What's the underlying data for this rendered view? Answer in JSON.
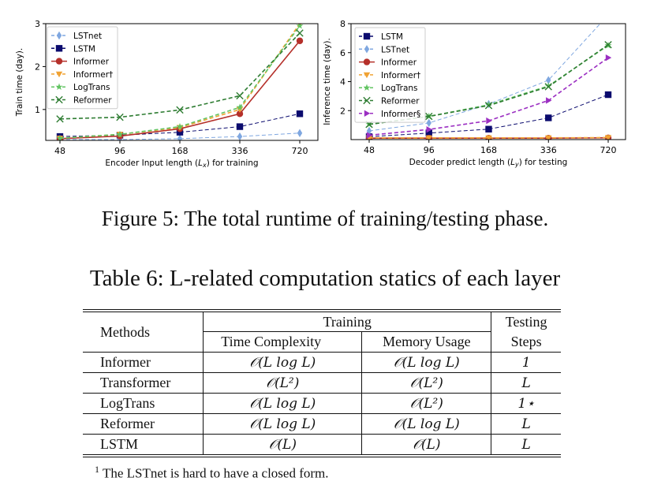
{
  "chart_data": [
    {
      "type": "line",
      "xlabel": "Encoder Input length (L_x) for training",
      "ylabel": "Train time (day).",
      "categories": [
        "48",
        "96",
        "168",
        "336",
        "720"
      ],
      "ylim": [
        0.28,
        3
      ],
      "yticks": [
        1,
        2,
        3
      ],
      "legend": "top-left",
      "series": [
        {
          "name": "LSTnet",
          "marker": "diamond",
          "style": "dashed",
          "color": "#7fa7e0",
          "values": [
            0.3,
            0.3,
            0.32,
            0.37,
            0.45
          ]
        },
        {
          "name": "LSTM",
          "marker": "square",
          "style": "dashed",
          "color": "#0b0b6e",
          "values": [
            0.37,
            0.4,
            0.47,
            0.6,
            0.9
          ]
        },
        {
          "name": "Informer",
          "marker": "circle",
          "style": "solid",
          "color": "#b5302a",
          "values": [
            0.32,
            0.38,
            0.55,
            0.9,
            2.6
          ]
        },
        {
          "name": "Informer†",
          "marker": "triangle-down",
          "style": "dashed",
          "color": "#f0a233",
          "values": [
            0.33,
            0.42,
            0.58,
            1.0,
            3.0
          ]
        },
        {
          "name": "LogTrans",
          "marker": "star",
          "style": "dashed",
          "color": "#62c462",
          "values": [
            0.33,
            0.42,
            0.6,
            1.05,
            2.95
          ]
        },
        {
          "name": "Reformer",
          "marker": "x",
          "style": "dashed",
          "color": "#2f7d33",
          "values": [
            0.78,
            0.82,
            0.99,
            1.32,
            2.78
          ]
        }
      ]
    },
    {
      "type": "line",
      "xlabel": "Decoder predict length (L_y) for testing",
      "ylabel": "Inference time (day).",
      "categories": [
        "48",
        "96",
        "168",
        "336",
        "720"
      ],
      "ylim": [
        0,
        8
      ],
      "yticks": [
        2,
        4,
        6,
        8
      ],
      "legend": "top-left",
      "series": [
        {
          "name": "LSTM",
          "marker": "square",
          "style": "dashed",
          "color": "#0b0b6e",
          "values": [
            0.2,
            0.45,
            0.72,
            1.5,
            3.1
          ]
        },
        {
          "name": "LSTnet",
          "marker": "diamond",
          "style": "dashed",
          "color": "#7fa7e0",
          "values": [
            0.6,
            1.15,
            2.45,
            4.1,
            8.6
          ]
        },
        {
          "name": "Informer",
          "marker": "circle",
          "style": "solid",
          "color": "#b5302a",
          "values": [
            0.1,
            0.1,
            0.1,
            0.1,
            0.12
          ]
        },
        {
          "name": "Informer†",
          "marker": "triangle-down",
          "style": "dashed",
          "color": "#f0a233",
          "values": [
            0.12,
            0.12,
            0.12,
            0.12,
            0.14
          ]
        },
        {
          "name": "LogTrans",
          "marker": "star",
          "style": "dashed",
          "color": "#62c462",
          "values": [
            1.05,
            1.6,
            2.4,
            3.7,
            6.5
          ]
        },
        {
          "name": "Reformer",
          "marker": "x",
          "style": "dashed",
          "color": "#2f7d33",
          "values": [
            1.05,
            1.6,
            2.35,
            3.65,
            6.55
          ]
        },
        {
          "name": "Informer§",
          "marker": "triangle-right",
          "style": "dashed",
          "color": "#9b2fc2",
          "values": [
            0.3,
            0.7,
            1.3,
            2.7,
            5.65
          ]
        }
      ]
    }
  ],
  "figure_caption": "Figure 5: The total runtime of training/testing phase.",
  "table_caption": "Table 6: L-related computation statics of each layer",
  "table": {
    "headers": {
      "methods": "Methods",
      "training": "Training",
      "testing": "Testing",
      "time": "Time Complexity",
      "memory": "Memory Usage",
      "steps": "Steps"
    },
    "rows": [
      [
        "Informer",
        "𝒪(L log L)",
        "𝒪(L log L)",
        "1"
      ],
      [
        "Transformer",
        "𝒪(L²)",
        "𝒪(L²)",
        "L"
      ],
      [
        "LogTrans",
        "𝒪(L log L)",
        "𝒪(L²)",
        "1⋆"
      ],
      [
        "Reformer",
        "𝒪(L log L)",
        "𝒪(L log L)",
        "L"
      ],
      [
        "LSTM",
        "𝒪(L)",
        "𝒪(L)",
        "L"
      ]
    ],
    "footnote_mark": "1",
    "footnote": "The LSTnet is hard to have a closed form."
  }
}
